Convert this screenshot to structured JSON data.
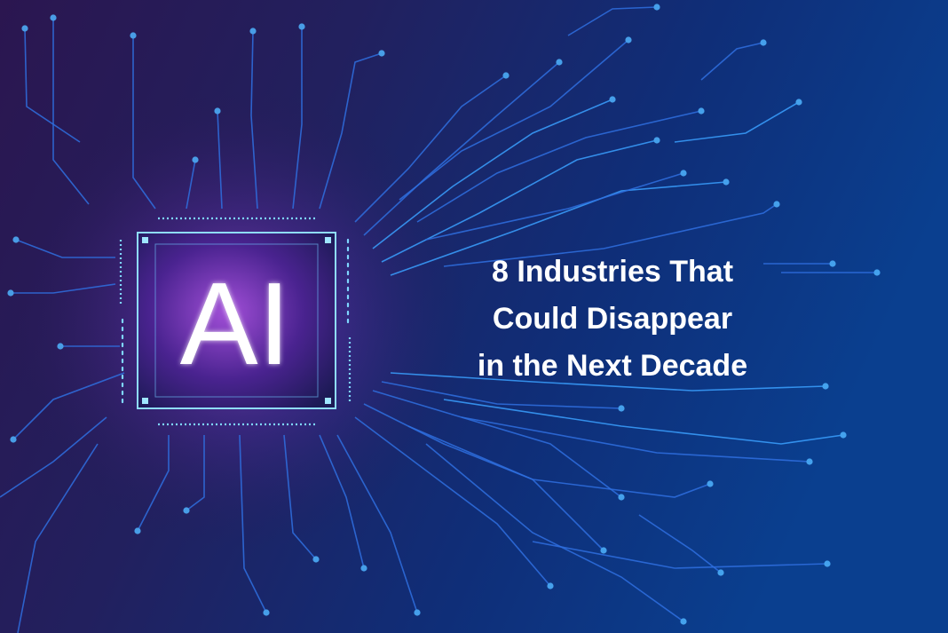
{
  "chip": {
    "label": "AI"
  },
  "headline": {
    "lines": [
      "8 Industries That",
      "Could Disappear",
      "in the Next Decade"
    ]
  }
}
